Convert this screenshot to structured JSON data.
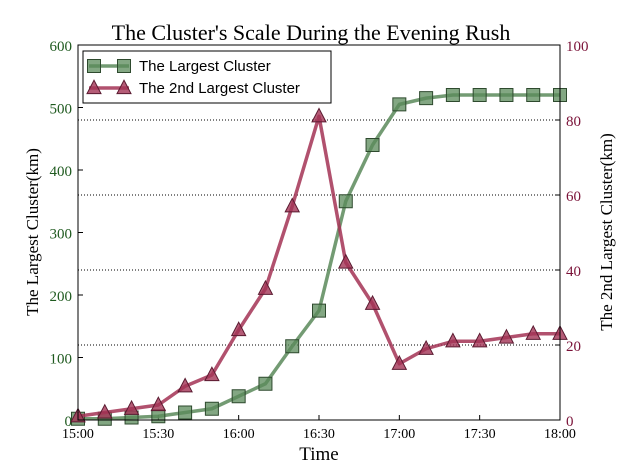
{
  "chart_data": {
    "type": "line",
    "title": "The Cluster's Scale During the Evening Rush",
    "xlabel": "Time",
    "ylabel_left": "The Largest Cluster(km)",
    "ylabel_right": "The 2nd Largest Cluster(km)",
    "x": [
      "15:00",
      "15:10",
      "15:20",
      "15:30",
      "15:40",
      "15:50",
      "16:00",
      "16:10",
      "16:20",
      "16:30",
      "16:40",
      "16:50",
      "17:00",
      "17:10",
      "17:20",
      "17:30",
      "17:40",
      "17:50",
      "18:00"
    ],
    "x_ticks": [
      "15:00",
      "15:30",
      "16:00",
      "16:30",
      "17:00",
      "17:30",
      "18:00"
    ],
    "ylim_left": [
      0,
      600
    ],
    "yticks_left": [
      "0",
      "100",
      "200",
      "300",
      "400",
      "500",
      "600"
    ],
    "ylim_right": [
      0,
      100
    ],
    "yticks_right": [
      "0",
      "20",
      "40",
      "60",
      "80",
      "100"
    ],
    "grid": "horizontal dotted at right-axis ticks",
    "legend_position": "top-left",
    "series": [
      {
        "name": "The Largest Cluster",
        "axis": "left",
        "marker": "square",
        "color": "#5a8a5a",
        "values": [
          2,
          2,
          4,
          6,
          12,
          18,
          38,
          58,
          118,
          175,
          350,
          440,
          505,
          515,
          520,
          520,
          520,
          520,
          520
        ]
      },
      {
        "name": "The 2nd Largest Cluster",
        "axis": "right",
        "marker": "triangle",
        "color": "#a33355",
        "values": [
          1,
          2,
          3,
          4,
          9,
          12,
          24,
          35,
          57,
          81,
          42,
          31,
          15,
          19,
          21,
          21,
          22,
          23,
          23
        ]
      }
    ],
    "colors": {
      "left_axis_text": "#1f5a1f",
      "right_axis_text": "#7a1238"
    }
  }
}
